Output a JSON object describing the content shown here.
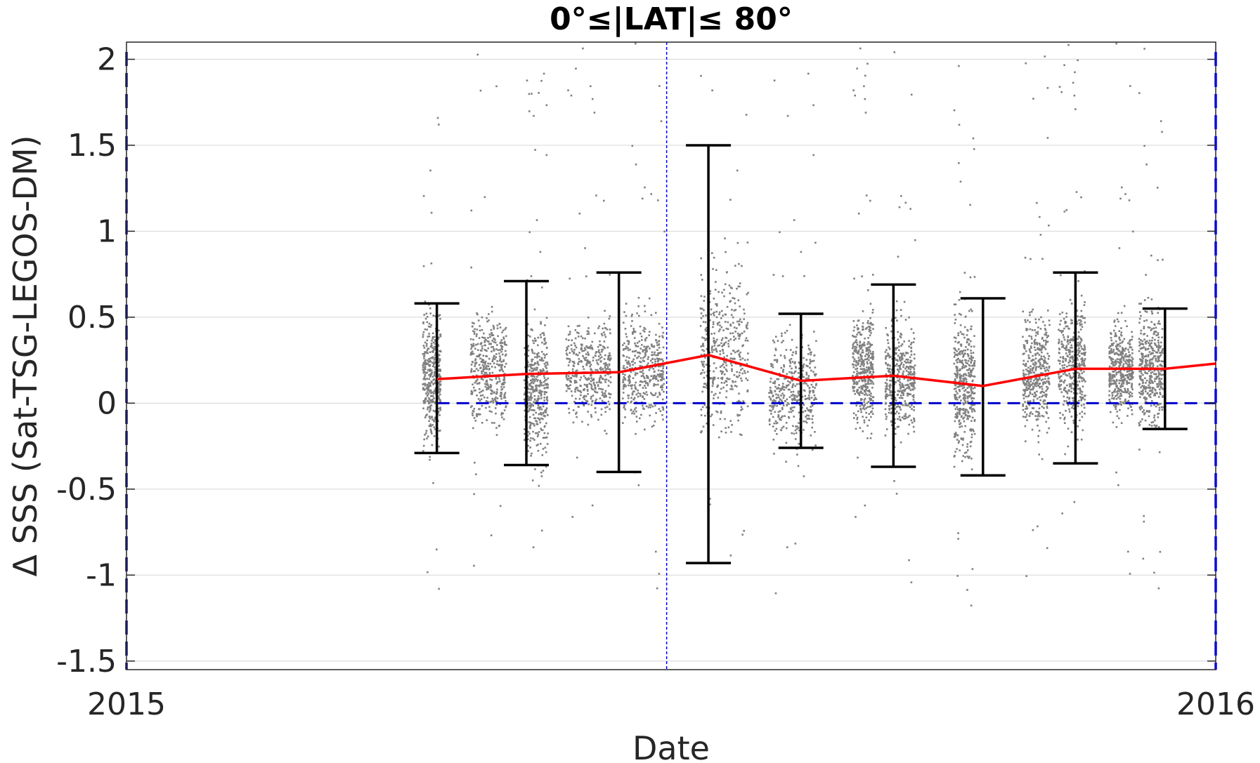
{
  "chart_data": {
    "type": "scatter",
    "title": "0°≤|LAT|≤ 80°",
    "xlabel": "Date",
    "ylabel": "Δ SSS (Sat-TSG-LEGOS-DM)",
    "xlim": [
      "2015-01-01",
      "2016-01-01"
    ],
    "ylim": [
      -1.55,
      2.1
    ],
    "xticks": [
      {
        "date": "2015-01-01",
        "label": "2015"
      },
      {
        "date": "2016-01-01",
        "label": "2016"
      }
    ],
    "yticks": [
      {
        "value": -1.5,
        "label": "-1.5"
      },
      {
        "value": -1,
        "label": "-1"
      },
      {
        "value": -0.5,
        "label": "-0.5"
      },
      {
        "value": 0,
        "label": "0"
      },
      {
        "value": 0.5,
        "label": "0.5"
      },
      {
        "value": 1,
        "label": "1"
      },
      {
        "value": 1.5,
        "label": "1.5"
      },
      {
        "value": 2,
        "label": "2"
      }
    ],
    "grid": "horizontal",
    "colors": {
      "scatter": "#808080",
      "mean_line": "#ff0000",
      "error_bars": "#000000",
      "zero_line": "#0000cc",
      "boundary_lines": "#0000ff",
      "grid": "#dcdcdc"
    },
    "reference_lines": {
      "zero": 0,
      "vertical_dotted_date": "2015-07-01",
      "boundary_dates": [
        "2015-01-01",
        "2016-01-01"
      ]
    },
    "scatter_clusters": [
      {
        "start": "2015-04-10",
        "end": "2015-04-16",
        "center": 0.15,
        "spread": 0.32
      },
      {
        "start": "2015-04-26",
        "end": "2015-05-08",
        "center": 0.2,
        "spread": 0.3
      },
      {
        "start": "2015-05-14",
        "end": "2015-05-22",
        "center": 0.1,
        "spread": 0.35
      },
      {
        "start": "2015-05-28",
        "end": "2015-06-12",
        "center": 0.2,
        "spread": 0.25
      },
      {
        "start": "2015-06-16",
        "end": "2015-06-30",
        "center": 0.2,
        "spread": 0.28
      },
      {
        "start": "2015-07-12",
        "end": "2015-07-28",
        "center": 0.3,
        "spread": 0.4
      },
      {
        "start": "2015-08-04",
        "end": "2015-08-20",
        "center": 0.1,
        "spread": 0.28
      },
      {
        "start": "2015-09-01",
        "end": "2015-09-08",
        "center": 0.2,
        "spread": 0.28
      },
      {
        "start": "2015-09-12",
        "end": "2015-09-22",
        "center": 0.15,
        "spread": 0.3
      },
      {
        "start": "2015-10-05",
        "end": "2015-10-12",
        "center": 0.1,
        "spread": 0.35
      },
      {
        "start": "2015-10-28",
        "end": "2015-11-06",
        "center": 0.2,
        "spread": 0.3
      },
      {
        "start": "2015-11-09",
        "end": "2015-11-18",
        "center": 0.22,
        "spread": 0.3
      },
      {
        "start": "2015-11-26",
        "end": "2015-12-04",
        "center": 0.2,
        "spread": 0.25
      },
      {
        "start": "2015-12-06",
        "end": "2015-12-14",
        "center": 0.2,
        "spread": 0.28
      }
    ],
    "series": [
      {
        "type": "line",
        "points": [
          {
            "x": "2015-04-15",
            "y": 0.14
          },
          {
            "x": "2015-05-15",
            "y": 0.17
          },
          {
            "x": "2015-06-15",
            "y": 0.18
          },
          {
            "x": "2015-07-15",
            "y": 0.28
          },
          {
            "x": "2015-08-15",
            "y": 0.13
          },
          {
            "x": "2015-09-15",
            "y": 0.16
          },
          {
            "x": "2015-10-15",
            "y": 0.1
          },
          {
            "x": "2015-11-15",
            "y": 0.2
          },
          {
            "x": "2015-12-15",
            "y": 0.2
          },
          {
            "x": "2016-01-01",
            "y": 0.23
          }
        ]
      }
    ],
    "error_bars": [
      {
        "x": "2015-04-15",
        "low": -0.29,
        "high": 0.58
      },
      {
        "x": "2015-05-15",
        "low": -0.36,
        "high": 0.71
      },
      {
        "x": "2015-06-15",
        "low": -0.4,
        "high": 0.76
      },
      {
        "x": "2015-07-15",
        "low": -0.93,
        "high": 1.5
      },
      {
        "x": "2015-08-15",
        "low": -0.26,
        "high": 0.52
      },
      {
        "x": "2015-09-15",
        "low": -0.37,
        "high": 0.69
      },
      {
        "x": "2015-10-15",
        "low": -0.42,
        "high": 0.61
      },
      {
        "x": "2015-11-15",
        "low": -0.35,
        "high": 0.76
      },
      {
        "x": "2015-12-15",
        "low": -0.15,
        "high": 0.55
      }
    ]
  }
}
